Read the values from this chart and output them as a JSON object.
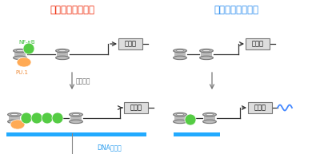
{
  "title_left": "長いエンハンサー",
  "title_right": "短いエンハンサー",
  "title_left_color": "#EE2200",
  "title_right_color": "#2288EE",
  "label_nfkb": "NF-κB",
  "label_nfkb_color": "#33BB33",
  "label_pu1": "PU.1",
  "label_pu1_color": "#EE8833",
  "label_antigen": "抗原刺激",
  "label_antigen_color": "#666666",
  "label_gene": "遺伝子",
  "label_dna": "DNAの長さ",
  "label_dna_color": "#2299EE",
  "bg_color": "#FFFFFF",
  "dna_bar_color": "#22AAFF",
  "green_circle_color": "#55CC44",
  "orange_oval_color": "#FFAA55",
  "spool_color": "#BBBBBB",
  "spool_edge": "#777777",
  "spool_inner": "#EEEEEE",
  "line_color": "#333333",
  "box_face": "#DDDDDD",
  "box_edge": "#777777",
  "arrow_color": "#333333",
  "wave_color": "#4488FF",
  "fig_w": 4.0,
  "fig_h": 1.93,
  "dpi": 100
}
